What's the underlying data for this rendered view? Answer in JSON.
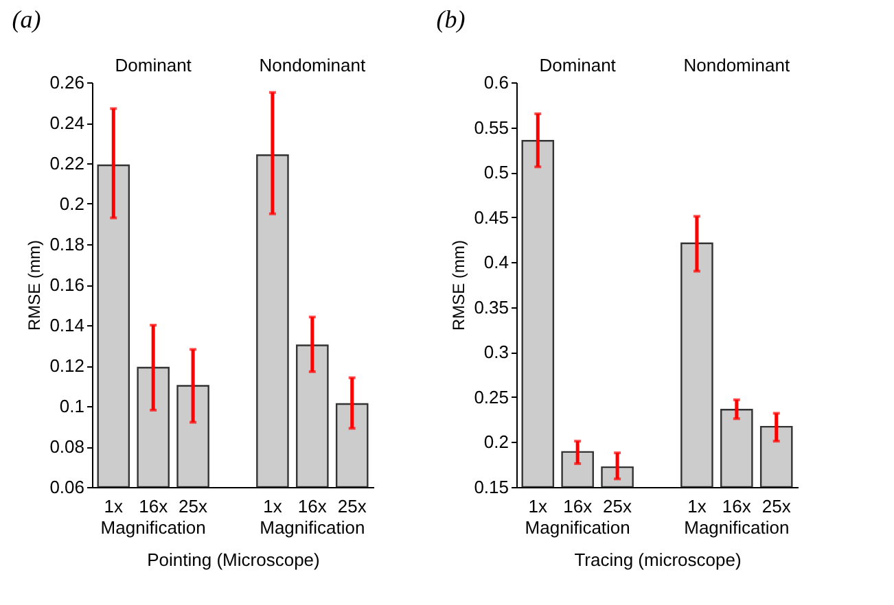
{
  "chart_data": [
    {
      "type": "bar",
      "title": "(a)",
      "xlabel": "Pointing  (Microscope)",
      "ylabel": "RMSE (mm)",
      "categories": [
        "1x",
        "16x",
        "25x",
        null,
        "1x",
        "16x",
        "25x"
      ],
      "values": [
        0.219,
        0.119,
        0.11,
        null,
        0.224,
        0.13,
        0.101
      ],
      "errors": [
        [
          0.193,
          0.247
        ],
        [
          0.098,
          0.14
        ],
        [
          0.092,
          0.128
        ],
        null,
        [
          0.195,
          0.255
        ],
        [
          0.117,
          0.144
        ],
        [
          0.089,
          0.114
        ]
      ],
      "color": "#cccccc",
      "ylim": [
        0.06,
        0.26
      ],
      "yticks": [
        0.06,
        0.08,
        0.1,
        0.12,
        0.14,
        0.16,
        0.18,
        0.2,
        0.22,
        0.24,
        0.26
      ],
      "annotations": [
        "Dominant",
        "Nondominant",
        "Magnification",
        "Magnification"
      ],
      "grid": false
    },
    {
      "type": "bar",
      "title": "(b)",
      "xlabel": "Tracing (microscope)",
      "ylabel": "RMSE (mm)",
      "categories": [
        "1x",
        "16x",
        "25x",
        null,
        "1x",
        "16x",
        "25x"
      ],
      "values": [
        0.535,
        0.189,
        0.172,
        null,
        0.421,
        0.236,
        0.217
      ],
      "errors": [
        [
          0.506,
          0.565
        ],
        [
          0.176,
          0.201
        ],
        [
          0.159,
          0.188
        ],
        null,
        [
          0.39,
          0.451
        ],
        [
          0.226,
          0.247
        ],
        [
          0.201,
          0.232
        ]
      ],
      "color": "#cccccc",
      "ylim": [
        0.15,
        0.6
      ],
      "yticks": [
        0.15,
        0.2,
        0.25,
        0.3,
        0.35,
        0.4,
        0.45,
        0.5,
        0.55,
        0.6
      ],
      "annotations": [
        "Dominant",
        "Nondominant",
        "Magnification",
        "Magnification"
      ],
      "grid": false
    }
  ]
}
